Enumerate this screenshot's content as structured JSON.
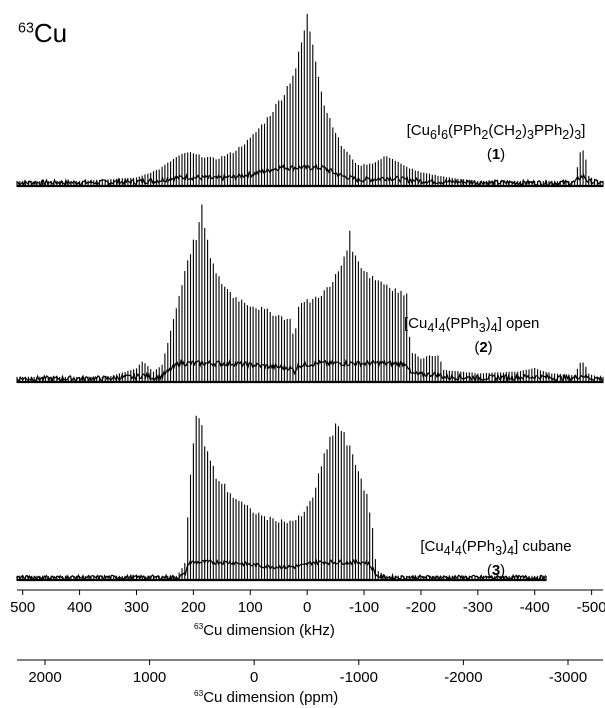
{
  "nucleus_label": {
    "sup": "63",
    "main": "Cu"
  },
  "compounds": [
    {
      "formula_html": "[Cu<sub>6</sub>I<sub>6</sub>(PPh<sub>2</sub>(CH<sub>2</sub>)<sub>3</sub>PPh<sub>2</sub>)<sub>3</sub>]",
      "number": "1"
    },
    {
      "formula_html": "[Cu<sub>4</sub>I<sub>4</sub>(PPh<sub>3</sub>)<sub>4</sub>] open",
      "number": "2"
    },
    {
      "formula_html": "[Cu<sub>4</sub>I<sub>4</sub>(PPh<sub>3</sub>)<sub>4</sub>] cubane",
      "number": "3"
    }
  ],
  "chart_data": {
    "type": "line",
    "x_axis_khz": {
      "label_sup": "63",
      "label_main": "Cu dimension (kHz)",
      "range": [
        510,
        -520
      ],
      "ticks": [
        "500",
        "400",
        "300",
        "200",
        "100",
        "0",
        "-100",
        "-200",
        "-300",
        "-400",
        "-500"
      ],
      "tick_values": [
        500,
        400,
        300,
        200,
        100,
        0,
        -100,
        -200,
        -300,
        -400,
        -500
      ]
    },
    "x_axis_ppm": {
      "label_sup": "63",
      "label_main": "Cu dimension (ppm)",
      "ticks": [
        "2000",
        "1000",
        "0",
        "-1000",
        "-2000",
        "-3000"
      ],
      "tick_values": [
        2000,
        1000,
        0,
        -1000,
        -2000,
        -3000
      ]
    },
    "spikelet_spacing_khz": 5,
    "series": [
      {
        "compound_index": 0,
        "range_khz": [
          510,
          -520
        ],
        "baseline_noise": 0.03,
        "envelope_khz": [
          [
            510,
            0.02
          ],
          [
            400,
            0.03
          ],
          [
            300,
            0.05
          ],
          [
            260,
            0.1
          ],
          [
            230,
            0.17
          ],
          [
            210,
            0.2
          ],
          [
            190,
            0.18
          ],
          [
            160,
            0.16
          ],
          [
            130,
            0.2
          ],
          [
            100,
            0.28
          ],
          [
            70,
            0.4
          ],
          [
            40,
            0.55
          ],
          [
            20,
            0.7
          ],
          [
            5,
            0.92
          ],
          [
            0,
            1.0
          ],
          [
            -10,
            0.85
          ],
          [
            -30,
            0.48
          ],
          [
            -60,
            0.24
          ],
          [
            -90,
            0.12
          ],
          [
            -120,
            0.14
          ],
          [
            -140,
            0.18
          ],
          [
            -170,
            0.12
          ],
          [
            -200,
            0.08
          ],
          [
            -250,
            0.05
          ],
          [
            -300,
            0.03
          ],
          [
            -400,
            0.02
          ],
          [
            -470,
            0.03
          ],
          [
            -480,
            0.2
          ],
          [
            -487,
            0.22
          ],
          [
            -494,
            0.06
          ],
          [
            -520,
            0.02
          ]
        ]
      },
      {
        "compound_index": 1,
        "range_khz": [
          510,
          -520
        ],
        "baseline_noise": 0.03,
        "envelope_khz": [
          [
            510,
            0.02
          ],
          [
            350,
            0.03
          ],
          [
            300,
            0.08
          ],
          [
            290,
            0.12
          ],
          [
            270,
            0.06
          ],
          [
            255,
            0.1
          ],
          [
            240,
            0.3
          ],
          [
            225,
            0.5
          ],
          [
            210,
            0.72
          ],
          [
            195,
            0.85
          ],
          [
            185,
            1.0
          ],
          [
            175,
            0.8
          ],
          [
            160,
            0.62
          ],
          [
            130,
            0.5
          ],
          [
            100,
            0.45
          ],
          [
            60,
            0.4
          ],
          [
            30,
            0.36
          ],
          [
            22,
            0.25
          ],
          [
            15,
            0.45
          ],
          [
            -10,
            0.48
          ],
          [
            -40,
            0.55
          ],
          [
            -60,
            0.68
          ],
          [
            -75,
            0.85
          ],
          [
            -85,
            0.72
          ],
          [
            -110,
            0.62
          ],
          [
            -150,
            0.55
          ],
          [
            -175,
            0.5
          ],
          [
            -182,
            0.18
          ],
          [
            -200,
            0.14
          ],
          [
            -230,
            0.16
          ],
          [
            -240,
            0.07
          ],
          [
            -300,
            0.05
          ],
          [
            -370,
            0.06
          ],
          [
            -400,
            0.08
          ],
          [
            -430,
            0.05
          ],
          [
            -470,
            0.04
          ],
          [
            -480,
            0.11
          ],
          [
            -487,
            0.12
          ],
          [
            -494,
            0.05
          ],
          [
            -520,
            0.02
          ]
        ]
      },
      {
        "compound_index": 2,
        "range_khz": [
          510,
          -420
        ],
        "baseline_noise": 0.025,
        "envelope_khz": [
          [
            510,
            0.01
          ],
          [
            230,
            0.02
          ],
          [
            215,
            0.1
          ],
          [
            205,
            0.65
          ],
          [
            195,
            0.96
          ],
          [
            188,
            1.0
          ],
          [
            180,
            0.8
          ],
          [
            160,
            0.62
          ],
          [
            130,
            0.5
          ],
          [
            100,
            0.42
          ],
          [
            70,
            0.37
          ],
          [
            40,
            0.35
          ],
          [
            20,
            0.36
          ],
          [
            5,
            0.4
          ],
          [
            -10,
            0.5
          ],
          [
            -25,
            0.68
          ],
          [
            -40,
            0.84
          ],
          [
            -50,
            0.93
          ],
          [
            -60,
            0.9
          ],
          [
            -75,
            0.78
          ],
          [
            -90,
            0.66
          ],
          [
            -105,
            0.5
          ],
          [
            -115,
            0.3
          ],
          [
            -122,
            0.06
          ],
          [
            -140,
            0.02
          ],
          [
            -420,
            0.01
          ]
        ]
      }
    ]
  }
}
